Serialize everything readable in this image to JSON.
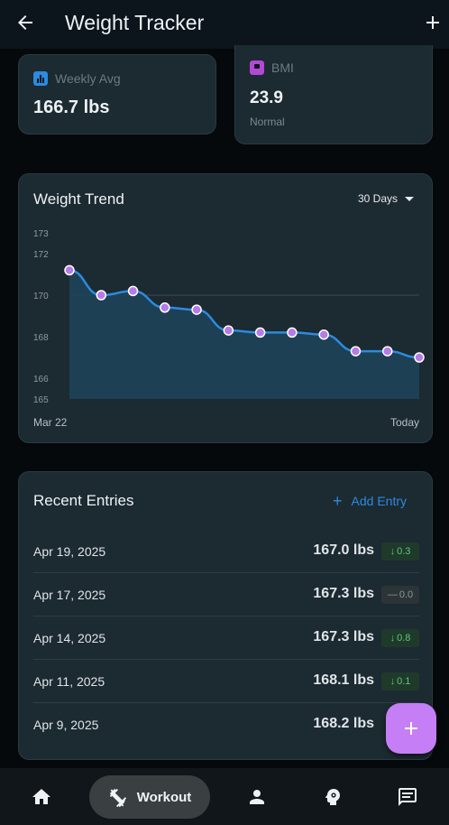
{
  "appbar": {
    "title": "Weight Tracker"
  },
  "stats": {
    "weekly": {
      "label": "Weekly Avg",
      "value": "166.7 lbs"
    },
    "bmi": {
      "label": "BMI",
      "value": "23.9",
      "status": "Normal"
    }
  },
  "trend": {
    "title": "Weight Trend",
    "range": "30 Days",
    "start_label": "Mar 22",
    "end_label": "Today"
  },
  "chart_data": {
    "type": "area",
    "title": "Weight Trend",
    "x_start_label": "Mar 22",
    "x_end_label": "Today",
    "y_ticks": [
      173,
      172,
      170,
      168,
      166,
      165
    ],
    "ylim": [
      165,
      173
    ],
    "values": [
      171.2,
      170.0,
      170.2,
      169.4,
      169.3,
      168.3,
      168.2,
      168.2,
      168.1,
      167.3,
      167.3,
      167.0
    ]
  },
  "recent": {
    "title": "Recent Entries",
    "add_label": "Add Entry",
    "entries": [
      {
        "date": "Apr 19, 2025",
        "weight": "167.0 lbs",
        "delta": "0.3",
        "dir": "down"
      },
      {
        "date": "Apr 17, 2025",
        "weight": "167.3 lbs",
        "delta": "0.0",
        "dir": "flat"
      },
      {
        "date": "Apr 14, 2025",
        "weight": "167.3 lbs",
        "delta": "0.8",
        "dir": "down"
      },
      {
        "date": "Apr 11, 2025",
        "weight": "168.1 lbs",
        "delta": "0.1",
        "dir": "down"
      },
      {
        "date": "Apr 9, 2025",
        "weight": "168.2 lbs",
        "delta": "",
        "dir": "none"
      }
    ]
  },
  "nav": {
    "active_label": "Workout"
  },
  "colors": {
    "accent": "#c57ef6",
    "line": "#2b8be0",
    "area": "#1e4259",
    "positive": "#5cc67a",
    "card": "#1c2a31"
  }
}
